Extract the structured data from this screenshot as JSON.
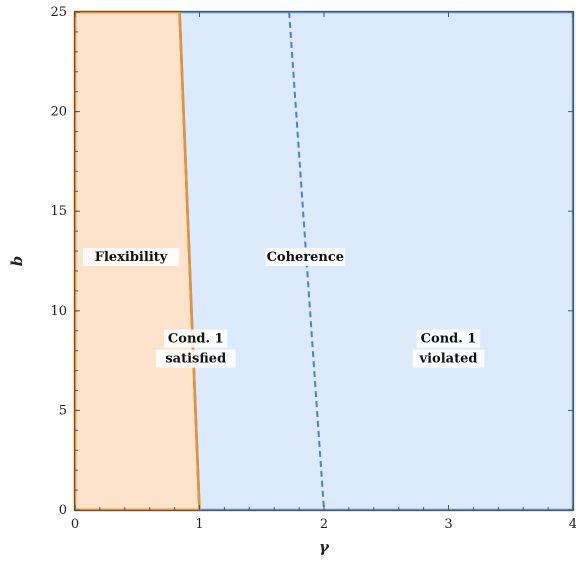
{
  "chart_data": {
    "type": "area",
    "title": "",
    "xlabel": "γ",
    "ylabel": "b",
    "xlim": [
      0,
      4
    ],
    "ylim": [
      0,
      25
    ],
    "xticks": [
      0,
      1,
      2,
      3,
      4
    ],
    "yticks": [
      0,
      5,
      10,
      15,
      20,
      25
    ],
    "grid": false,
    "regions": [
      {
        "name": "Flexibility",
        "fill_color": "#fde3cc",
        "stroke_color": "#f0902a",
        "polygon": [
          [
            0,
            0
          ],
          [
            1.0,
            0
          ],
          [
            0.84,
            25
          ],
          [
            0,
            25
          ]
        ]
      },
      {
        "name": "Coherence",
        "fill_color": "#dcebfb",
        "stroke_color": "#5b8fd8",
        "polygon": [
          [
            1.0,
            0
          ],
          [
            4,
            0
          ],
          [
            4,
            25
          ],
          [
            0.84,
            25
          ]
        ]
      }
    ],
    "dashed_boundary": {
      "color": "#4a80d0",
      "points": [
        [
          1.72,
          25
        ],
        [
          2.0,
          0
        ]
      ]
    },
    "annotations": [
      {
        "lines": [
          "Flexibility"
        ],
        "x": 0.45,
        "y": 12.5
      },
      {
        "lines": [
          "Coherence"
        ],
        "x": 1.85,
        "y": 12.5
      },
      {
        "lines": [
          "Cond. 1",
          "satisfied"
        ],
        "x": 0.97,
        "y": 7.9
      },
      {
        "lines": [
          "Cond. 1",
          "violated"
        ],
        "x": 3.0,
        "y": 7.9
      }
    ]
  }
}
